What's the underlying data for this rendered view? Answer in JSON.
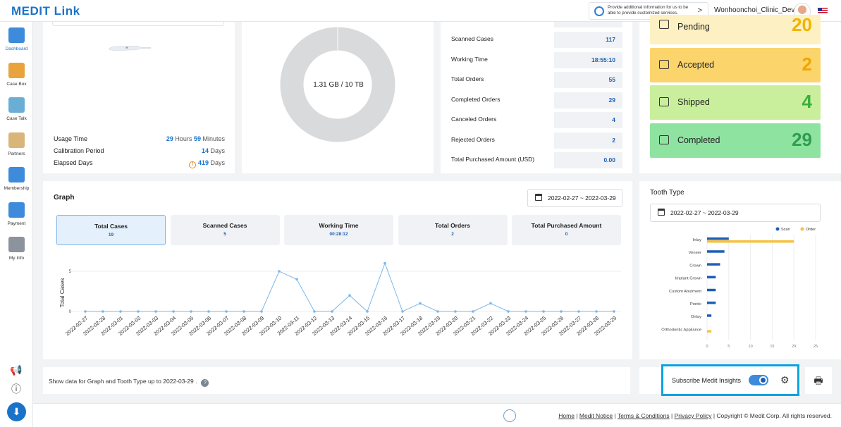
{
  "header": {
    "logo_brand": "MEDIT",
    "logo_product": "Link",
    "promo_text": "Provide additional information for us to be able to provide customized services.",
    "promo_arrow": ">",
    "username": "Wonhoonchoi_Clinic_Dev"
  },
  "sidebar": {
    "items": [
      {
        "label": "Dashboard",
        "icon": "dashboard-icon",
        "color": "#3e8bdb"
      },
      {
        "label": "Case Box",
        "icon": "case-box-icon",
        "color": "#e8a33c"
      },
      {
        "label": "Case Talk",
        "icon": "case-talk-icon",
        "color": "#6aaed6"
      },
      {
        "label": "Partners",
        "icon": "partners-icon",
        "color": "#d9b57a"
      },
      {
        "label": "Membership",
        "icon": "membership-icon",
        "color": "#3e8bdb"
      },
      {
        "label": "Payment",
        "icon": "payment-icon",
        "color": "#3e8bdb"
      },
      {
        "label": "My Info",
        "icon": "my-info-icon",
        "color": "#8d939c"
      }
    ],
    "announce_icon": "📢",
    "info_icon": "ⓘ",
    "download_icon": "⬇"
  },
  "scanner": {
    "usage_time_label": "Usage Time",
    "usage_hours": "29",
    "hours_unit": "Hours",
    "usage_minutes": "59",
    "minutes_unit": "Minutes",
    "calibration_label": "Calibration Period",
    "calibration_value": "14",
    "calibration_unit": "Days",
    "elapsed_label": "Elapsed Days",
    "elapsed_value": "419",
    "elapsed_unit": "Days",
    "warn_glyph": "!"
  },
  "storage": {
    "label": "1.31 GB / 10 TB"
  },
  "stats": [
    {
      "label": "Scanned Cases",
      "value": "117"
    },
    {
      "label": "Working Time",
      "value": "18:55:10"
    },
    {
      "label": "Total Orders",
      "value": "55"
    },
    {
      "label": "Completed Orders",
      "value": "29"
    },
    {
      "label": "Canceled Orders",
      "value": "4"
    },
    {
      "label": "Rejected Orders",
      "value": "2"
    },
    {
      "label": "Total Purchased Amount (USD)",
      "value": "0.00"
    }
  ],
  "status_cards": [
    {
      "label": "Pending",
      "count": "20",
      "bg": "#fdf0c2",
      "count_color": "#f0b400"
    },
    {
      "label": "Accepted",
      "count": "2",
      "bg": "#fbd56c",
      "count_color": "#f0a500"
    },
    {
      "label": "Shipped",
      "count": "4",
      "bg": "#c9ef9c",
      "count_color": "#3cae3c"
    },
    {
      "label": "Completed",
      "count": "29",
      "bg": "#8fe3a1",
      "count_color": "#2e9e4f"
    }
  ],
  "graph": {
    "title": "Graph",
    "date_range": "2022-02-27 ~ 2022-03-29",
    "tabs": [
      {
        "label": "Total Cases",
        "value": "19"
      },
      {
        "label": "Scanned Cases",
        "value": "5"
      },
      {
        "label": "Working Time",
        "value": "00:28:12"
      },
      {
        "label": "Total Orders",
        "value": "2"
      },
      {
        "label": "Total Purchased Amount",
        "value": "0"
      }
    ]
  },
  "tooth": {
    "title": "Tooth Type",
    "date_range": "2022-02-27 ~ 2022-03-29"
  },
  "chart_data": [
    {
      "type": "line",
      "title": "Graph",
      "ylabel": "Total Cases",
      "xlabel": "",
      "ylim": [
        0,
        5
      ],
      "yticks": [
        0,
        5
      ],
      "x": [
        "2022-02-27",
        "2022-02-28",
        "2022-03-01",
        "2022-03-02",
        "2022-03-03",
        "2022-03-04",
        "2022-03-05",
        "2022-03-06",
        "2022-03-07",
        "2022-03-08",
        "2022-03-09",
        "2022-03-10",
        "2022-03-11",
        "2022-03-12",
        "2022-03-13",
        "2022-03-14",
        "2022-03-15",
        "2022-03-16",
        "2022-03-17",
        "2022-03-18",
        "2022-03-19",
        "2022-03-20",
        "2022-03-21",
        "2022-03-22",
        "2022-03-23",
        "2022-03-24",
        "2022-03-25",
        "2022-03-26",
        "2022-03-27",
        "2022-03-28",
        "2022-03-29"
      ],
      "series": [
        {
          "name": "Total Cases",
          "values": [
            0,
            0,
            0,
            0,
            0,
            0,
            0,
            0,
            0,
            0,
            0,
            5,
            4,
            0,
            0,
            2,
            0,
            6,
            0,
            1,
            0,
            0,
            0,
            1,
            0,
            0,
            0,
            0,
            0,
            0,
            0
          ]
        }
      ]
    },
    {
      "type": "bar",
      "orientation": "horizontal",
      "title": "Tooth Type",
      "categories": [
        "Inlay",
        "Veneer",
        "Crown",
        "Implant Crown",
        "Custom Abutment",
        "Pontic",
        "Onlay",
        "Orthodontic Appliance"
      ],
      "series": [
        {
          "name": "Scan",
          "color": "#1a5fb4",
          "values": [
            5,
            4,
            3,
            2,
            2,
            2,
            1,
            0
          ]
        },
        {
          "name": "Order",
          "color": "#f5c242",
          "values": [
            20,
            0,
            0,
            0,
            0,
            0,
            0,
            1
          ]
        }
      ],
      "xlim": [
        0,
        25
      ],
      "xticks": [
        0,
        5,
        10,
        15,
        20,
        25
      ],
      "legend": "top-right"
    }
  ],
  "footnote": {
    "text": "Show data for Graph and Tooth Type up to 2022-03-29 .",
    "help_glyph": "?"
  },
  "insights": {
    "label": "Subscribe Medit Insights",
    "gear_icon": "⚙",
    "print_icon": "🖶"
  },
  "footer": {
    "links": [
      "Home",
      "Medit Notice",
      "Terms & Conditions",
      "Privacy Policy"
    ],
    "copyright": "Copyright © Medit Corp. All rights reserved."
  }
}
